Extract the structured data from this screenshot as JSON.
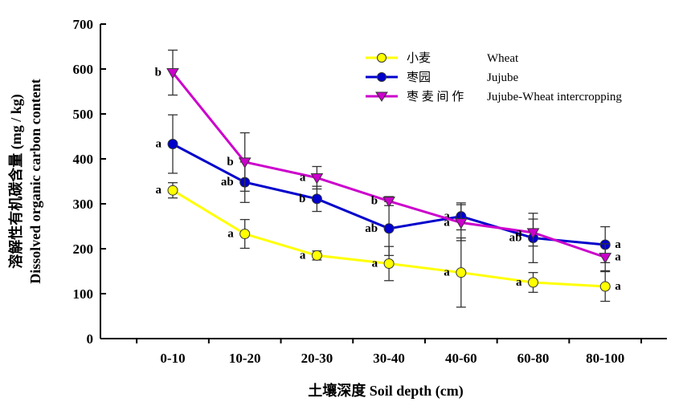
{
  "chart_data": {
    "type": "line",
    "xlabel": "土壤深度  Soil depth (cm)",
    "ylabel_cn": "溶解性有机碳含量 (mg / kg)",
    "ylabel_en": "Dissolved organic carbon content",
    "categories": [
      "0-10",
      "10-20",
      "20-30",
      "30-40",
      "40-60",
      "60-80",
      "80-100"
    ],
    "ylim": [
      0,
      700
    ],
    "yticks": [
      0,
      100,
      200,
      300,
      400,
      500,
      600,
      700
    ],
    "grid": false,
    "legend_position": "top-right",
    "series": [
      {
        "name_cn": "小麦",
        "name_en": "Wheat",
        "color": "#ffff00",
        "marker": "circle",
        "values": [
          330,
          233,
          185,
          167,
          147,
          125,
          116
        ],
        "errors": [
          17,
          32,
          10,
          38,
          77,
          22,
          33
        ],
        "labels": [
          "a",
          "a",
          "a",
          "a",
          "a",
          "a",
          "a"
        ]
      },
      {
        "name_cn": "枣园",
        "name_en": "Jujube",
        "color": "#0000cc",
        "marker": "circle",
        "values": [
          433,
          348,
          311,
          245,
          272,
          224,
          209
        ],
        "errors": [
          65,
          45,
          28,
          60,
          30,
          55,
          40
        ],
        "labels": [
          "a",
          "ab",
          "b",
          "ab",
          "a",
          "ab",
          "a"
        ]
      },
      {
        "name_cn": "枣 麦 间 作",
        "name_en": "Jujube-Wheat intercropping",
        "color": "#cc00cc",
        "marker": "triangle-down",
        "values": [
          592,
          393,
          358,
          306,
          258,
          236,
          181
        ],
        "errors": [
          50,
          65,
          25,
          10,
          40,
          30,
          30
        ],
        "labels": [
          "b",
          "b",
          "a",
          "b",
          "a",
          "a",
          "a"
        ]
      }
    ]
  }
}
